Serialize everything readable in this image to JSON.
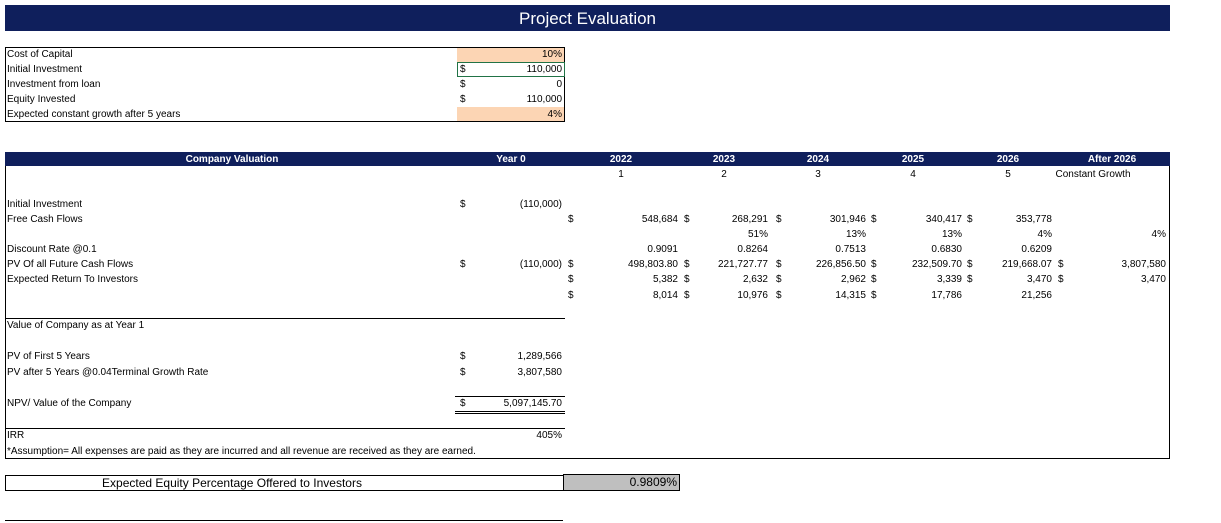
{
  "title": "Project Evaluation",
  "inputs": [
    [
      "Cost of Capital",
      null,
      "10%"
    ],
    [
      "Initial Investment",
      "$",
      "110,000"
    ],
    [
      "Investment from loan",
      "$",
      "0"
    ],
    [
      "Equity Invested",
      "$",
      "110,000"
    ],
    [
      "Expected constant growth after 5 years",
      null,
      "4%"
    ]
  ],
  "valuation": {
    "header": [
      "Company Valuation",
      "Year 0",
      "2022",
      "2023",
      "2024",
      "2025",
      "2026",
      "After 2026"
    ],
    "subheader": [
      "1",
      "2",
      "3",
      "4",
      "5",
      "Constant Growth"
    ],
    "rows": [
      [
        "Initial Investment",
        "$",
        "(110,000)"
      ],
      [
        "Free Cash Flows",
        null,
        null,
        "$",
        "548,684",
        "$",
        "268,291",
        "$",
        "301,946",
        "$",
        "340,417",
        "$",
        "353,778"
      ],
      [
        null,
        null,
        null,
        null,
        null,
        null,
        "51%",
        null,
        "13%",
        null,
        "13%",
        null,
        "4%",
        null,
        "4%"
      ],
      [
        "Discount Rate @0.1",
        null,
        null,
        null,
        "0.9091",
        null,
        "0.8264",
        null,
        "0.7513",
        null,
        "0.6830",
        null,
        "0.6209"
      ],
      [
        "PV Of all Future Cash Flows",
        "$",
        "(110,000)",
        "$",
        "498,803.80",
        "$",
        "221,727.77",
        "$",
        "226,856.50",
        "$",
        "232,509.70",
        "$",
        "219,668.07",
        "$",
        "3,807,580"
      ],
      [
        "Expected Return To Investors",
        null,
        null,
        "$",
        "5,382",
        "$",
        "2,632",
        "$",
        "2,962",
        "$",
        "3,339",
        "$",
        "3,470",
        "$",
        "3,470"
      ],
      [
        null,
        null,
        null,
        "$",
        "8,014",
        "$",
        "10,976",
        "$",
        "14,315",
        "$",
        "17,786",
        null,
        "21,256"
      ],
      [
        "Value of Company as at Year 1"
      ],
      [
        "PV of First 5 Years",
        "$",
        "1,289,566"
      ],
      [
        "PV after 5 Years @0.04Terminal Growth Rate",
        "$",
        "3,807,580"
      ],
      [
        "NPV/ Value of the Company",
        "$",
        "5,097,145.70"
      ],
      [
        "IRR",
        null,
        "405%"
      ],
      [
        "*Assumption= All expenses are paid as they are incurred and all revenue are received as they are earned."
      ]
    ]
  },
  "equity": {
    "label": "Expected Equity Percentage Offered to Investors",
    "value": "0.9809%"
  }
}
